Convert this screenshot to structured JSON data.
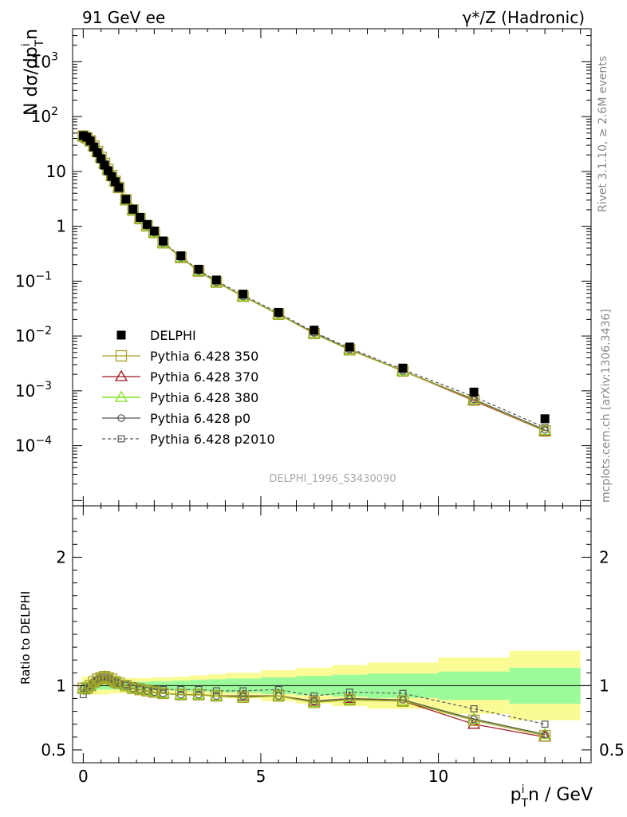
{
  "header": {
    "left_title": "91 GeV ee",
    "right_title": "γ*/Z (Hadronic)"
  },
  "side_labels": {
    "rivet": "Rivet 3.1.10, ≥ 2.6M events",
    "mcplots": "mcplots.cern.ch [arXiv:1306.3436]"
  },
  "watermark": "DELPHI_1996_S3430090",
  "colors": {
    "data": "#000000",
    "p350": "#a8a02a",
    "p370": "#a0141e",
    "p380": "#7ee21c",
    "p0": "#555555",
    "p2010": "#555555",
    "band_inner": "#9bfb9b",
    "band_outer": "#fbfb96"
  },
  "chart_data": [
    {
      "type": "line",
      "panel": "main",
      "ylabel_main": "N dσ/dp",
      "ylabel_sup": "i",
      "ylabel_sub": "T",
      "ylabel_tail": "n",
      "yscale": "log",
      "xlim": [
        -0.3,
        14.3
      ],
      "ylim": [
        8e-06,
        4000
      ],
      "y_ticks": [
        {
          "value": 0.0001,
          "base": "10",
          "exp": "−4"
        },
        {
          "value": 0.001,
          "base": "10",
          "exp": "−3"
        },
        {
          "value": 0.01,
          "base": "10",
          "exp": "−2"
        },
        {
          "value": 0.1,
          "base": "10",
          "exp": "−1"
        },
        {
          "value": 1,
          "base": "1",
          "exp": ""
        },
        {
          "value": 10,
          "base": "10",
          "exp": ""
        },
        {
          "value": 100,
          "base": "10",
          "exp": "2"
        },
        {
          "value": 1000,
          "base": "10",
          "exp": "3"
        }
      ],
      "legend_position": "lower-left",
      "x": [
        0.0,
        0.1,
        0.2,
        0.3,
        0.4,
        0.5,
        0.6,
        0.7,
        0.8,
        0.9,
        1.0,
        1.2,
        1.4,
        1.6,
        1.8,
        2.0,
        2.25,
        2.75,
        3.25,
        3.75,
        4.5,
        5.5,
        6.5,
        7.5,
        9.0,
        11.0,
        13.0
      ],
      "series": [
        {
          "name": "DELPHI",
          "key": "data",
          "values": [
            45,
            42,
            36,
            28,
            22,
            17,
            13,
            10.3,
            8.1,
            6.5,
            5.1,
            3.1,
            2.05,
            1.45,
            1.08,
            0.82,
            0.54,
            0.29,
            0.165,
            0.105,
            0.058,
            0.027,
            0.0128,
            0.0063,
            0.0026,
            0.00095,
            0.00031
          ]
        },
        {
          "name": "Pythia 6.428 350",
          "key": "p350",
          "values": [
            44,
            41,
            36,
            29,
            23,
            18,
            14,
            10.8,
            8.4,
            6.6,
            5.1,
            3.05,
            1.98,
            1.38,
            1.02,
            0.77,
            0.5,
            0.27,
            0.153,
            0.096,
            0.053,
            0.0249,
            0.0111,
            0.0056,
            0.0023,
            0.00068,
            0.000185
          ]
        },
        {
          "name": "Pythia 6.428 370",
          "key": "p370",
          "values": [
            44,
            41,
            36,
            29,
            23,
            18,
            14,
            10.8,
            8.4,
            6.6,
            5.1,
            3.05,
            1.98,
            1.38,
            1.02,
            0.77,
            0.5,
            0.27,
            0.153,
            0.096,
            0.053,
            0.0249,
            0.0112,
            0.0057,
            0.0023,
            0.00066,
            0.000185
          ]
        },
        {
          "name": "Pythia 6.428 380",
          "key": "p380",
          "values": [
            44,
            41,
            36,
            29,
            23,
            18,
            14,
            10.8,
            8.4,
            6.6,
            5.1,
            3.05,
            1.98,
            1.38,
            1.02,
            0.77,
            0.5,
            0.27,
            0.153,
            0.096,
            0.053,
            0.0249,
            0.0111,
            0.0056,
            0.0023,
            0.0007,
            0.00019
          ]
        },
        {
          "name": "Pythia 6.428 p0",
          "key": "p0",
          "values": [
            44,
            41,
            36,
            29,
            23,
            18,
            14,
            10.8,
            8.4,
            6.6,
            5.1,
            3.05,
            1.98,
            1.38,
            1.02,
            0.77,
            0.5,
            0.27,
            0.153,
            0.096,
            0.053,
            0.025,
            0.0114,
            0.0057,
            0.0023,
            0.0007,
            0.000195
          ]
        },
        {
          "name": "Pythia 6.428 p2010",
          "key": "p2010",
          "values": [
            42,
            41,
            36,
            29,
            23,
            18,
            14,
            10.8,
            8.4,
            6.6,
            5.1,
            3.1,
            2.0,
            1.4,
            1.04,
            0.79,
            0.52,
            0.28,
            0.16,
            0.101,
            0.056,
            0.0262,
            0.0118,
            0.006,
            0.00245,
            0.00078,
            0.000215
          ]
        }
      ]
    },
    {
      "type": "line",
      "panel": "ratio",
      "xlabel_main": "p",
      "xlabel_sup": "i",
      "xlabel_sub": "T",
      "xlabel_tail": "n / GeV",
      "ylabel": "Ratio to DELPHI",
      "ylim": [
        0.4,
        2.4
      ],
      "y_ticks": [
        0.5,
        1,
        2
      ],
      "x_ticks": [
        0,
        5,
        10
      ],
      "x": [
        0.0,
        0.1,
        0.2,
        0.3,
        0.4,
        0.5,
        0.6,
        0.7,
        0.8,
        0.9,
        1.0,
        1.2,
        1.4,
        1.6,
        1.8,
        2.0,
        2.25,
        2.75,
        3.25,
        3.75,
        4.5,
        5.5,
        6.5,
        7.5,
        9.0,
        11.0,
        13.0
      ],
      "band_edges": [
        -0.05,
        0.05,
        0.15,
        0.25,
        0.35,
        0.45,
        0.55,
        0.65,
        0.75,
        0.85,
        0.95,
        1.1,
        1.3,
        1.5,
        1.7,
        1.9,
        2.1,
        2.5,
        3.0,
        3.5,
        4.0,
        5.0,
        6.0,
        7.0,
        8.0,
        10.0,
        12.0,
        14.0
      ],
      "band_inner": [
        0.03,
        0.03,
        0.03,
        0.03,
        0.03,
        0.03,
        0.03,
        0.03,
        0.03,
        0.03,
        0.03,
        0.03,
        0.03,
        0.03,
        0.03,
        0.035,
        0.035,
        0.04,
        0.045,
        0.05,
        0.055,
        0.065,
        0.075,
        0.085,
        0.095,
        0.11,
        0.14
      ],
      "band_outer": [
        0.07,
        0.07,
        0.07,
        0.07,
        0.07,
        0.07,
        0.07,
        0.07,
        0.06,
        0.06,
        0.06,
        0.06,
        0.06,
        0.06,
        0.06,
        0.065,
        0.065,
        0.07,
        0.08,
        0.09,
        0.1,
        0.12,
        0.14,
        0.16,
        0.18,
        0.22,
        0.27
      ],
      "series": [
        {
          "name": "Pythia 6.428 350",
          "key": "p350",
          "values": [
            0.98,
            0.98,
            1.0,
            1.03,
            1.05,
            1.06,
            1.07,
            1.06,
            1.05,
            1.03,
            1.02,
            1.0,
            0.98,
            0.97,
            0.96,
            0.95,
            0.94,
            0.93,
            0.93,
            0.92,
            0.91,
            0.92,
            0.87,
            0.89,
            0.88,
            0.73,
            0.61
          ]
        },
        {
          "name": "Pythia 6.428 370",
          "key": "p370",
          "values": [
            0.98,
            0.98,
            1.0,
            1.03,
            1.05,
            1.06,
            1.07,
            1.06,
            1.05,
            1.03,
            1.02,
            1.0,
            0.98,
            0.97,
            0.96,
            0.95,
            0.94,
            0.93,
            0.93,
            0.92,
            0.92,
            0.92,
            0.88,
            0.9,
            0.88,
            0.7,
            0.6
          ]
        },
        {
          "name": "Pythia 6.428 380",
          "key": "p380",
          "values": [
            0.98,
            0.98,
            1.0,
            1.03,
            1.05,
            1.06,
            1.07,
            1.06,
            1.05,
            1.03,
            1.02,
            1.0,
            0.98,
            0.97,
            0.96,
            0.95,
            0.94,
            0.93,
            0.93,
            0.92,
            0.91,
            0.92,
            0.87,
            0.89,
            0.88,
            0.74,
            0.62
          ]
        },
        {
          "name": "Pythia 6.428 p0",
          "key": "p0",
          "values": [
            0.98,
            0.98,
            1.0,
            1.03,
            1.05,
            1.06,
            1.07,
            1.06,
            1.05,
            1.03,
            1.02,
            1.0,
            0.98,
            0.97,
            0.96,
            0.95,
            0.94,
            0.93,
            0.93,
            0.92,
            0.92,
            0.92,
            0.88,
            0.9,
            0.89,
            0.74,
            0.62
          ]
        },
        {
          "name": "Pythia 6.428 p2010",
          "key": "p2010",
          "values": [
            0.93,
            0.96,
            0.99,
            1.02,
            1.04,
            1.05,
            1.06,
            1.05,
            1.04,
            1.03,
            1.02,
            1.01,
            1.0,
            0.99,
            0.98,
            0.97,
            0.97,
            0.97,
            0.97,
            0.96,
            0.96,
            0.97,
            0.92,
            0.95,
            0.94,
            0.82,
            0.7
          ]
        }
      ]
    }
  ]
}
